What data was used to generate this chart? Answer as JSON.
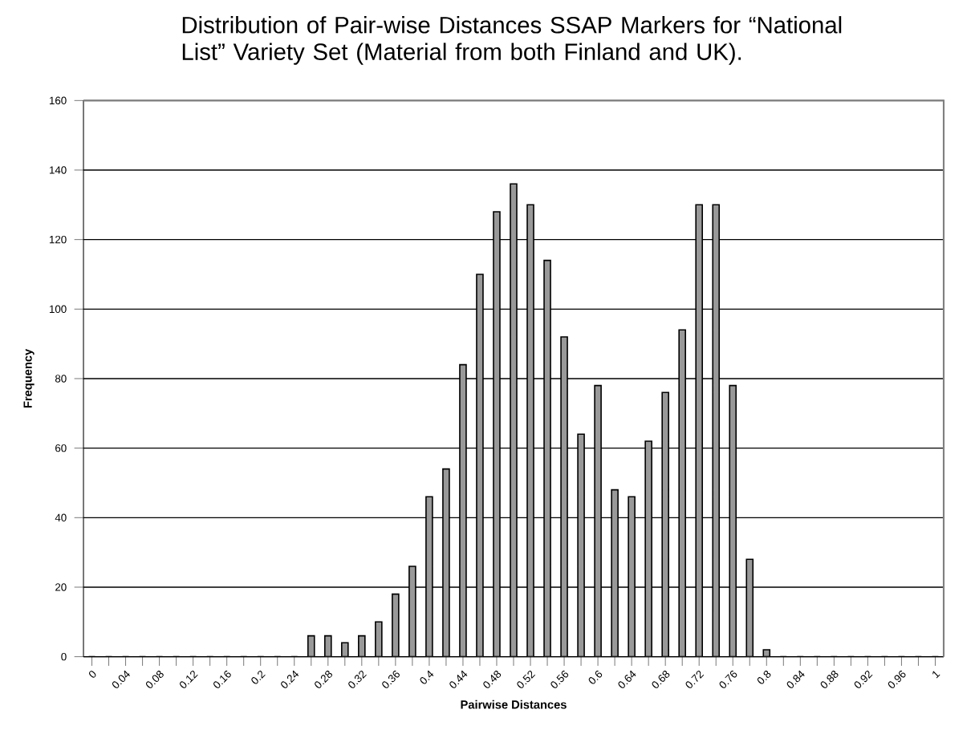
{
  "chart_data": {
    "type": "bar",
    "title": "Distribution of Pair-wise Distances SSAP Markers for “National List” Variety Set (Material from both Finland and UK).",
    "xlabel": "Pairwise Distances",
    "ylabel": "Frequency",
    "categories": [
      "0",
      null,
      "0.04",
      null,
      "0.08",
      null,
      "0.12",
      null,
      "0.16",
      null,
      "0.2",
      null,
      "0.24",
      null,
      "0.28",
      null,
      "0.32",
      null,
      "0.36",
      null,
      "0.4",
      null,
      "0.44",
      null,
      "0.48",
      null,
      "0.52",
      null,
      "0.56",
      null,
      "0.6",
      null,
      "0.64",
      null,
      "0.68",
      null,
      "0.72",
      null,
      "0.76",
      null,
      "0.8",
      null,
      "0.84",
      null,
      "0.88",
      null,
      "0.92",
      null,
      "0.96",
      null,
      "1"
    ],
    "values": [
      0,
      0,
      0,
      0,
      0,
      0,
      0,
      0,
      0,
      0,
      0,
      0,
      0,
      6,
      6,
      4,
      6,
      10,
      18,
      26,
      46,
      54,
      84,
      110,
      128,
      136,
      130,
      114,
      92,
      64,
      78,
      48,
      46,
      62,
      76,
      94,
      130,
      130,
      78,
      28,
      2,
      0,
      0,
      0,
      0,
      0,
      0,
      0,
      0,
      0,
      0
    ],
    "color": "#999999",
    "ylim": [
      0,
      160
    ],
    "yticks": [
      0,
      20,
      40,
      60,
      80,
      100,
      120,
      140,
      160
    ],
    "grid": "y"
  }
}
